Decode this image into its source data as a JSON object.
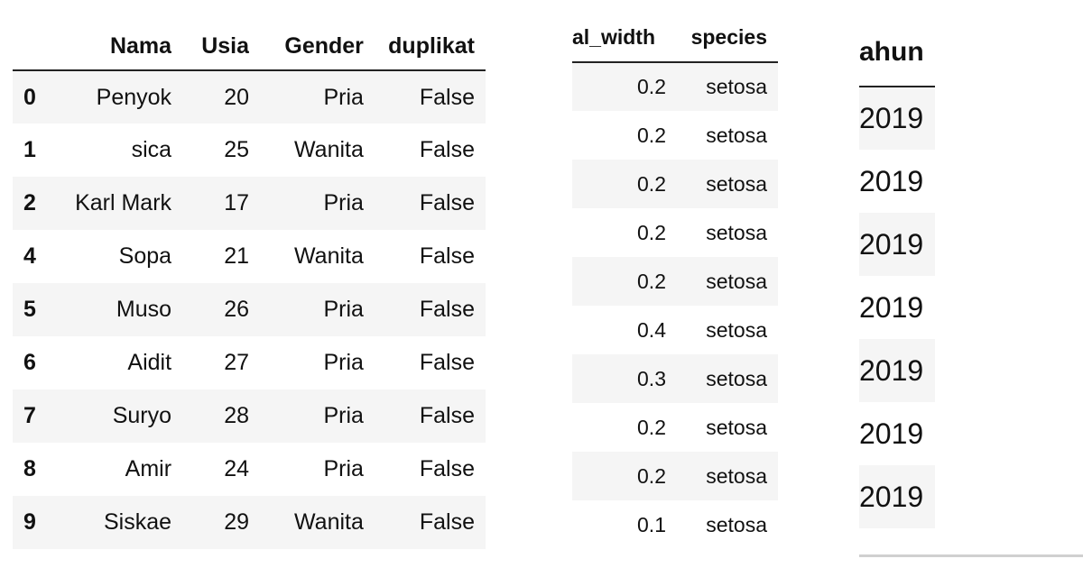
{
  "table_main": {
    "headers": [
      "",
      "Nama",
      "Usia",
      "Gender",
      "duplikat"
    ],
    "rows": [
      {
        "index": "0",
        "nama": "Penyok",
        "usia": "20",
        "gender": "Pria",
        "duplikat": "False"
      },
      {
        "index": "1",
        "nama": "sica",
        "usia": "25",
        "gender": "Wanita",
        "duplikat": "False"
      },
      {
        "index": "2",
        "nama": "Karl Mark",
        "usia": "17",
        "gender": "Pria",
        "duplikat": "False"
      },
      {
        "index": "4",
        "nama": "Sopa",
        "usia": "21",
        "gender": "Wanita",
        "duplikat": "False"
      },
      {
        "index": "5",
        "nama": "Muso",
        "usia": "26",
        "gender": "Pria",
        "duplikat": "False"
      },
      {
        "index": "6",
        "nama": "Aidit",
        "usia": "27",
        "gender": "Pria",
        "duplikat": "False"
      },
      {
        "index": "7",
        "nama": "Suryo",
        "usia": "28",
        "gender": "Pria",
        "duplikat": "False"
      },
      {
        "index": "8",
        "nama": "Amir",
        "usia": "24",
        "gender": "Pria",
        "duplikat": "False"
      },
      {
        "index": "9",
        "nama": "Siskae",
        "usia": "29",
        "gender": "Wanita",
        "duplikat": "False"
      }
    ]
  },
  "table_iris": {
    "headers": [
      "al_width",
      "species"
    ],
    "rows": [
      {
        "petal_width": "0.2",
        "species": "setosa"
      },
      {
        "petal_width": "0.2",
        "species": "setosa"
      },
      {
        "petal_width": "0.2",
        "species": "setosa"
      },
      {
        "petal_width": "0.2",
        "species": "setosa"
      },
      {
        "petal_width": "0.2",
        "species": "setosa"
      },
      {
        "petal_width": "0.4",
        "species": "setosa"
      },
      {
        "petal_width": "0.3",
        "species": "setosa"
      },
      {
        "petal_width": "0.2",
        "species": "setosa"
      },
      {
        "petal_width": "0.2",
        "species": "setosa"
      },
      {
        "petal_width": "0.1",
        "species": "setosa"
      }
    ]
  },
  "table_year": {
    "header": "ahun",
    "rows": [
      "2019",
      "2019",
      "2019",
      "2019",
      "2019",
      "2019",
      "2019"
    ]
  },
  "colors": {
    "row_stripe": "#f5f5f5",
    "header_rule": "#222222",
    "text": "#111111"
  }
}
